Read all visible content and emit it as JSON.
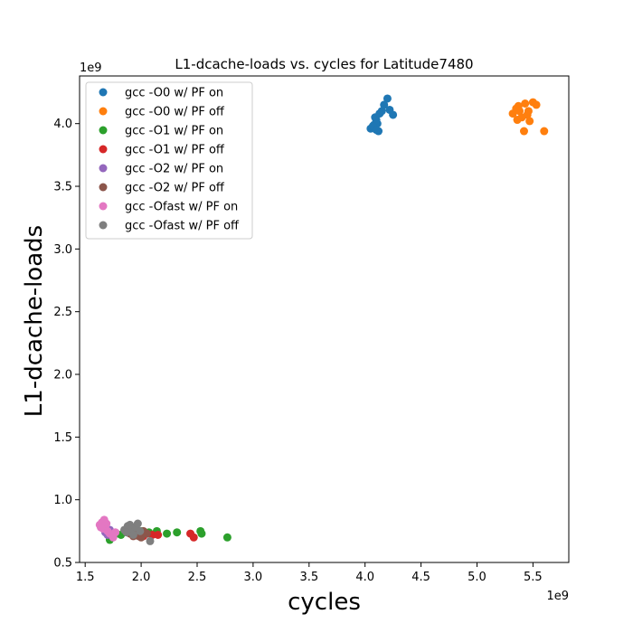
{
  "chart_data": {
    "type": "scatter",
    "title": "L1-dcache-loads vs. cycles for Latitude7480",
    "xlabel": "cycles",
    "ylabel": "L1-dcache-loads",
    "x_offset_label": "1e9",
    "y_offset_label": "1e9",
    "xlim": [
      1.45,
      5.82
    ],
    "ylim": [
      0.5,
      4.38
    ],
    "xticks": [
      1.5,
      2.0,
      2.5,
      3.0,
      3.5,
      4.0,
      4.5,
      5.0,
      5.5
    ],
    "xtick_labels": [
      "1.5",
      "2.0",
      "2.5",
      "3.0",
      "3.5",
      "4.0",
      "4.5",
      "5.0",
      "5.5"
    ],
    "yticks": [
      0.5,
      1.0,
      1.5,
      2.0,
      2.5,
      3.0,
      3.5,
      4.0
    ],
    "ytick_labels": [
      "0.5",
      "1.0",
      "1.5",
      "2.0",
      "2.5",
      "3.0",
      "3.5",
      "4.0"
    ],
    "grid": false,
    "legend_position": "top-left",
    "series": [
      {
        "name": "gcc -O0 w/ PF on",
        "color": "#1f77b4",
        "x": [
          4.05,
          4.08,
          4.1,
          4.12,
          4.15,
          4.17,
          4.2,
          4.22,
          4.25,
          4.09,
          4.11,
          4.13,
          4.07,
          4.1
        ],
        "y": [
          3.96,
          3.99,
          4.03,
          3.94,
          4.1,
          4.15,
          4.2,
          4.11,
          4.07,
          4.05,
          4.0,
          4.08,
          3.98,
          3.95
        ]
      },
      {
        "name": "gcc -O0 w/ PF off",
        "color": "#ff7f0e",
        "x": [
          5.32,
          5.35,
          5.37,
          5.4,
          5.43,
          5.45,
          5.47,
          5.5,
          5.53,
          5.6,
          5.42,
          5.38,
          5.36,
          5.46
        ],
        "y": [
          4.08,
          4.12,
          4.14,
          4.05,
          4.16,
          4.07,
          4.02,
          4.17,
          4.15,
          3.94,
          3.94,
          4.1,
          4.03,
          4.1
        ]
      },
      {
        "name": "gcc -O1 w/ PF on",
        "color": "#2ca02c",
        "x": [
          1.72,
          1.78,
          1.85,
          1.92,
          2.0,
          2.07,
          2.14,
          2.23,
          2.32,
          2.53,
          2.54,
          2.77,
          1.82
        ],
        "y": [
          0.68,
          0.73,
          0.75,
          0.73,
          0.75,
          0.74,
          0.75,
          0.73,
          0.74,
          0.75,
          0.73,
          0.7,
          0.72
        ]
      },
      {
        "name": "gcc -O1 w/ PF off",
        "color": "#d62728",
        "x": [
          1.95,
          2.0,
          2.05,
          2.1,
          2.15,
          2.44,
          2.47,
          2.02
        ],
        "y": [
          0.72,
          0.74,
          0.73,
          0.72,
          0.72,
          0.73,
          0.7,
          0.71
        ]
      },
      {
        "name": "gcc -O2 w/ PF on",
        "color": "#9467bd",
        "x": [
          1.68,
          1.7,
          1.72
        ],
        "y": [
          0.74,
          0.72,
          0.76
        ]
      },
      {
        "name": "gcc -O2 w/ PF off",
        "color": "#8c564b",
        "x": [
          1.9,
          1.93,
          1.95,
          1.97,
          2.0,
          2.02,
          2.05,
          1.98
        ],
        "y": [
          0.73,
          0.71,
          0.74,
          0.72,
          0.7,
          0.75,
          0.73,
          0.71
        ]
      },
      {
        "name": "gcc -Ofast w/ PF on",
        "color": "#e377c2",
        "x": [
          1.63,
          1.65,
          1.67,
          1.68,
          1.66,
          1.69,
          1.7,
          1.72,
          1.75,
          1.77,
          1.64
        ],
        "y": [
          0.8,
          0.82,
          0.84,
          0.79,
          0.77,
          0.81,
          0.75,
          0.73,
          0.7,
          0.74,
          0.78
        ]
      },
      {
        "name": "gcc -Ofast w/ PF off",
        "color": "#7f7f7f",
        "x": [
          1.85,
          1.88,
          1.9,
          1.92,
          1.95,
          1.97,
          1.99,
          2.08,
          1.87,
          1.93
        ],
        "y": [
          0.76,
          0.79,
          0.8,
          0.77,
          0.78,
          0.81,
          0.75,
          0.67,
          0.74,
          0.72
        ]
      }
    ]
  }
}
